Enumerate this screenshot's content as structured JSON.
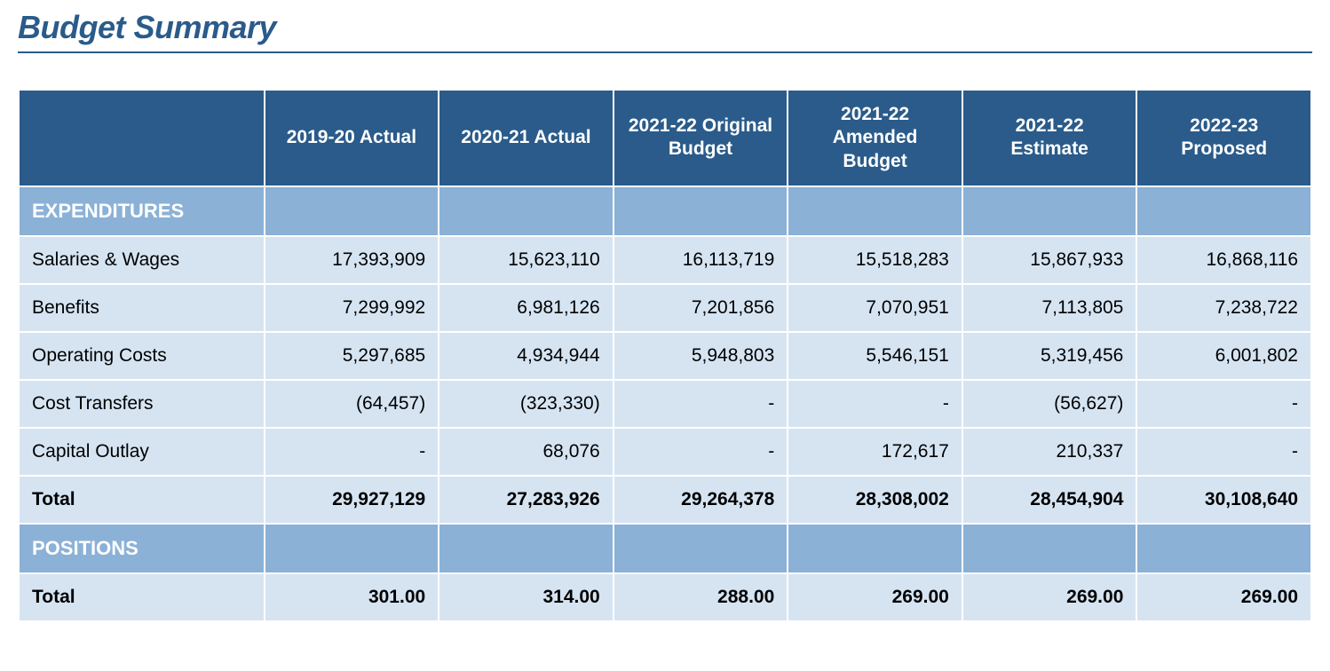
{
  "title": "Budget Summary",
  "table": {
    "type": "table",
    "header_bg": "#2a5b8a",
    "header_fg": "#ffffff",
    "section_bg": "#8bb1d6",
    "section_fg": "#ffffff",
    "row_bg": "#d6e4f2",
    "border_color": "#ffffff",
    "title_color": "#2a5b8a",
    "columns": [
      "",
      "2019-20 Actual",
      "2020-21 Actual",
      "2021-22 Original Budget",
      "2021-22 Amended Budget",
      "2021-22 Estimate",
      "2022-23 Proposed"
    ],
    "sections": [
      {
        "name": "EXPENDITURES",
        "rows": [
          {
            "label": "Salaries & Wages",
            "values": [
              "17,393,909",
              "15,623,110",
              "16,113,719",
              "15,518,283",
              "15,867,933",
              "16,868,116"
            ]
          },
          {
            "label": "Benefits",
            "values": [
              "7,299,992",
              "6,981,126",
              "7,201,856",
              "7,070,951",
              "7,113,805",
              "7,238,722"
            ]
          },
          {
            "label": "Operating Costs",
            "values": [
              "5,297,685",
              "4,934,944",
              "5,948,803",
              "5,546,151",
              "5,319,456",
              "6,001,802"
            ]
          },
          {
            "label": "Cost Transfers",
            "values": [
              "(64,457)",
              "(323,330)",
              "-",
              "-",
              "(56,627)",
              "-"
            ]
          },
          {
            "label": "Capital Outlay",
            "values": [
              "-",
              "68,076",
              "-",
              "172,617",
              "210,337",
              "-"
            ]
          }
        ],
        "total": {
          "label": "Total",
          "values": [
            "29,927,129",
            "27,283,926",
            "29,264,378",
            "28,308,002",
            "28,454,904",
            "30,108,640"
          ]
        }
      },
      {
        "name": "POSITIONS",
        "rows": [],
        "total": {
          "label": "Total",
          "values": [
            "301.00",
            "314.00",
            "288.00",
            "269.00",
            "269.00",
            "269.00"
          ]
        }
      }
    ]
  }
}
